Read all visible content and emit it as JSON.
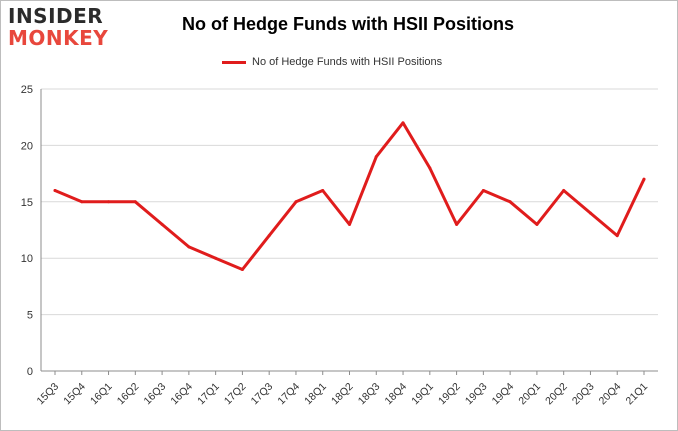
{
  "logo": {
    "line1": "INSIDER",
    "line2": "MONKEY"
  },
  "chart_data": {
    "type": "line",
    "title": "No of Hedge Funds with HSII Positions",
    "xlabel": "",
    "ylabel": "",
    "categories": [
      "15Q3",
      "15Q4",
      "16Q1",
      "16Q2",
      "16Q3",
      "16Q4",
      "17Q1",
      "17Q2",
      "17Q3",
      "17Q4",
      "18Q1",
      "18Q2",
      "18Q3",
      "18Q4",
      "19Q1",
      "19Q2",
      "19Q3",
      "19Q4",
      "20Q1",
      "20Q2",
      "20Q3",
      "20Q4",
      "21Q1"
    ],
    "series": [
      {
        "name": "No of Hedge Funds with HSII Positions",
        "values": [
          16,
          15,
          15,
          15,
          13,
          11,
          10,
          9,
          12,
          15,
          16,
          13,
          19,
          22,
          18,
          13,
          16,
          15,
          13,
          16,
          14,
          12,
          17
        ]
      }
    ],
    "ylim": [
      0,
      25
    ],
    "yticks": [
      0,
      5,
      10,
      15,
      20,
      25
    ],
    "grid": true,
    "legend": "top-center",
    "color": "#e01c1c"
  }
}
